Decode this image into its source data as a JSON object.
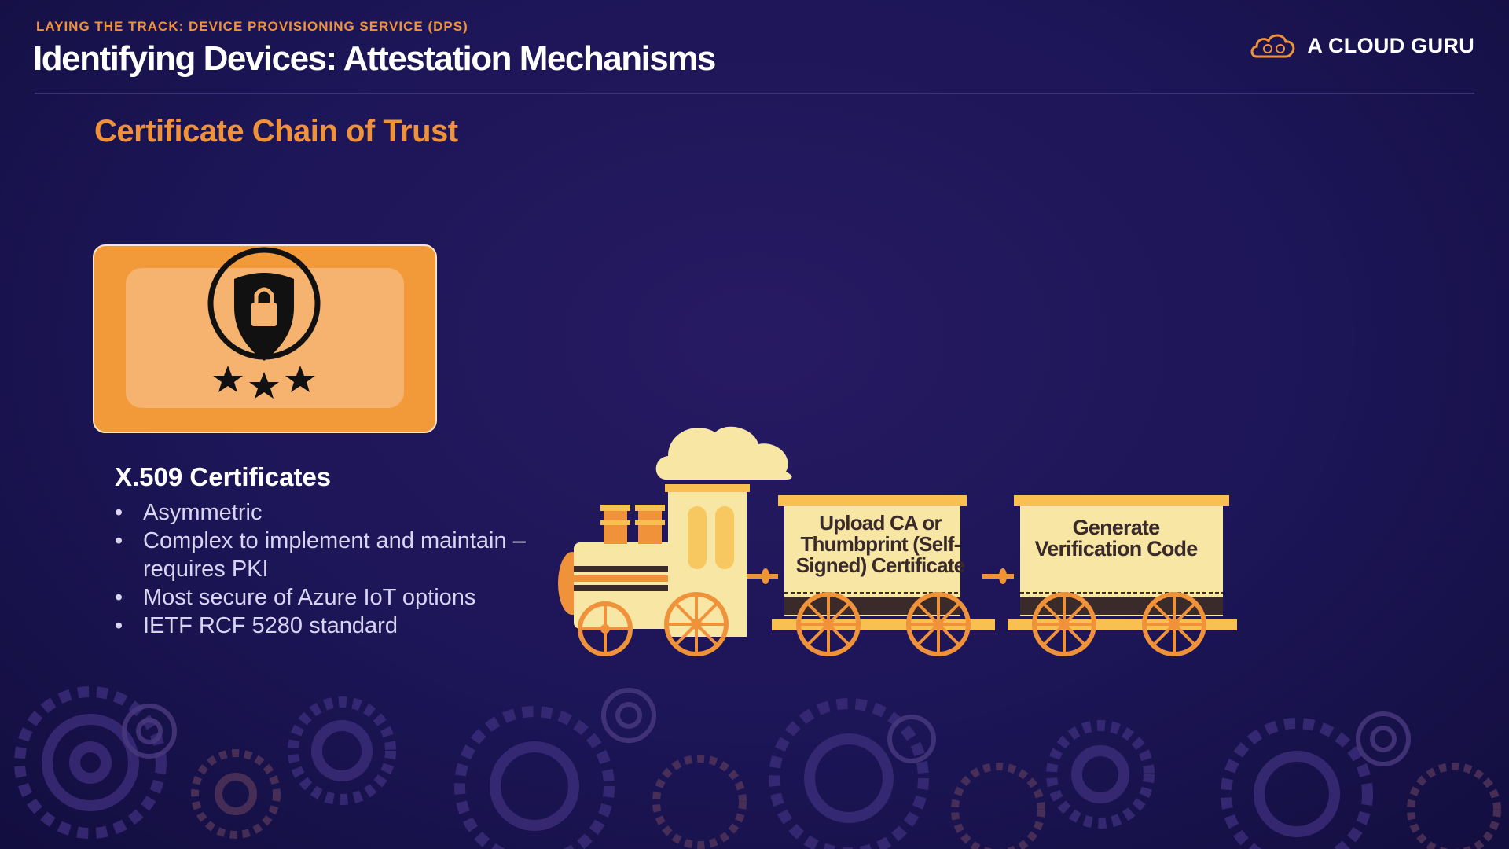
{
  "header": {
    "kicker": "LAYING THE TRACK: DEVICE PROVISIONING SERVICE (DPS)",
    "title": "Identifying Devices: Attestation Mechanisms",
    "brand": "A CLOUD GURU"
  },
  "subtitle": "Certificate Chain of Trust",
  "card": {
    "icon": "shield-lock-stars-icon"
  },
  "section": {
    "heading": "X.509 Certificates",
    "bullets": [
      "Asymmetric",
      "Complex to implement and maintain – requires PKI",
      "Most secure of Azure IoT options",
      "IETF RCF 5280 standard"
    ]
  },
  "train": {
    "car1_label": "Upload CA or Thumbprint (Self-Signed) Certificate",
    "car2_label": "Generate Verification Code"
  },
  "colors": {
    "accent": "#f0923a",
    "background": "#1c1556",
    "train_body": "#f7e6a4"
  }
}
